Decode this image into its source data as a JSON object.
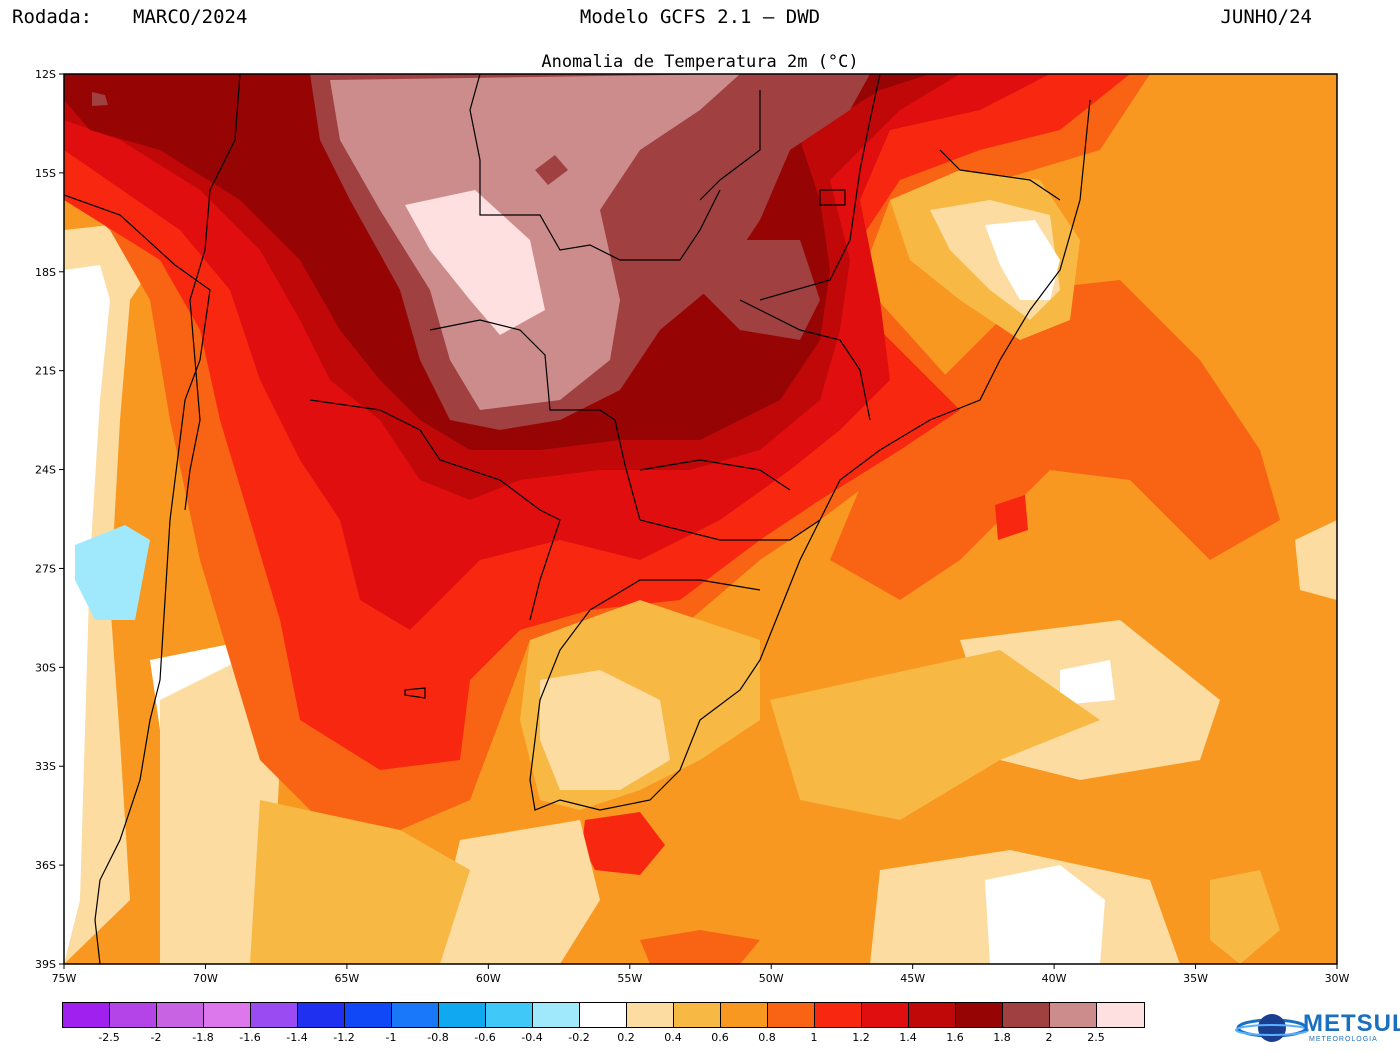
{
  "header": {
    "run_label": "Rodada:",
    "run_value": "MARCO/2024",
    "model_title": "Modelo GCFS 2.1 – DWD",
    "valid_month": "JUNHO/24"
  },
  "subtitle": "Anomalia de Temperatura 2m (°C)",
  "map": {
    "lat_labels": [
      "12S",
      "15S",
      "18S",
      "21S",
      "24S",
      "27S",
      "30S",
      "33S",
      "36S",
      "39S"
    ],
    "lon_labels": [
      "75W",
      "70W",
      "65W",
      "60W",
      "55W",
      "50W",
      "45W",
      "40W",
      "35W",
      "30W"
    ],
    "lat_range": [
      -39,
      -12
    ],
    "lon_range": [
      -75,
      -30
    ]
  },
  "colorbar": {
    "colors": [
      "#a020f0",
      "#b444e8",
      "#c864e4",
      "#dc78ec",
      "#9a4cf2",
      "#2030f0",
      "#1048f8",
      "#1878f8",
      "#10a8f0",
      "#40c8f8",
      "#a0e8fc",
      "#ffffff",
      "#fcdca0",
      "#f8b844",
      "#f89820",
      "#f86414",
      "#f82810",
      "#e00e0e",
      "#c00808",
      "#960404",
      "#a04040",
      "#cc8c8c",
      "#ffe0e0"
    ],
    "labels": [
      "-2.5",
      "-2",
      "-1.8",
      "-1.6",
      "-1.4",
      "-1.2",
      "-1",
      "-0.8",
      "-0.6",
      "-0.4",
      "-0.2",
      "0.2",
      "0.4",
      "0.6",
      "0.8",
      "1",
      "1.2",
      "1.4",
      "1.6",
      "1.8",
      "2",
      "2.5"
    ]
  },
  "logo": {
    "name": "METSUL",
    "tagline": "METEOROLOGIA"
  }
}
